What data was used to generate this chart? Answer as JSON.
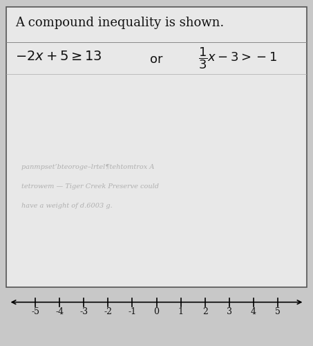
{
  "title": "A compound inequality is shown.",
  "inequality_left_tex": "$-2x + 5 \\geq 13$",
  "connector": "or",
  "inequality_right_tex": "$\\dfrac{1}{3}x - 3 > -1$",
  "number_line_ticks": [
    -5,
    -4,
    -3,
    -2,
    -1,
    0,
    1,
    2,
    3,
    4,
    5
  ],
  "bg_color": "#c8c8c8",
  "box_color": "#e8e8e8",
  "box_border_color": "#555555",
  "text_color": "#111111",
  "watermark_color": "#b0b0b0",
  "watermark_lines": [
    "panmpset’bteoroge–lrtel¶tehtomtrox A",
    "tetrowem — Tiger Creek Preserve could",
    "have a weight of d.6003 g."
  ],
  "title_fontsize": 13,
  "ineq_fontsize": 13,
  "nl_fontsize": 9,
  "figsize": [
    4.53,
    5.0
  ],
  "dpi": 100
}
